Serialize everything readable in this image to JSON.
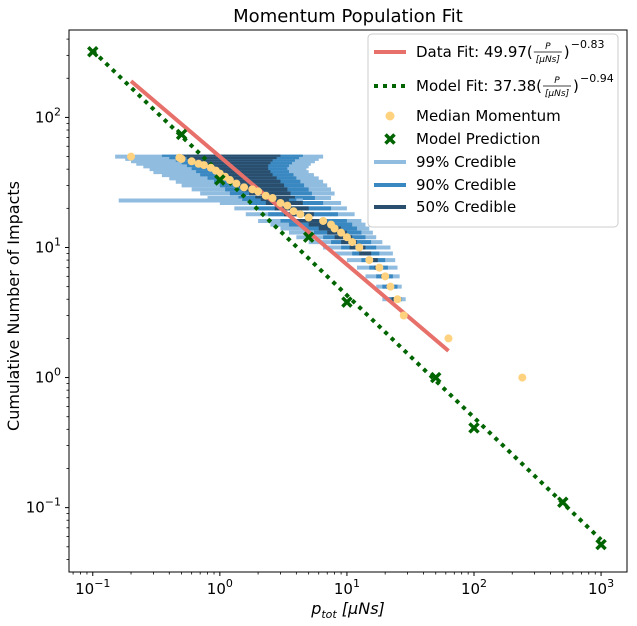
{
  "chart_data": {
    "type": "scatter",
    "title": "Momentum Population Fit",
    "xlabel": "p_tot [μNs]",
    "ylabel": "Cumulative Number of Impacts",
    "xscale": "log",
    "yscale": "log",
    "xlim": [
      0.065,
      1600
    ],
    "ylim": [
      0.032,
      470
    ],
    "x_ticks": [
      {
        "value": 0.1,
        "base": "10",
        "exp": "−1"
      },
      {
        "value": 1,
        "base": "10",
        "exp": "0"
      },
      {
        "value": 10,
        "base": "10",
        "exp": "1"
      },
      {
        "value": 100,
        "base": "10",
        "exp": "2"
      },
      {
        "value": 1000,
        "base": "10",
        "exp": "3"
      }
    ],
    "y_ticks": [
      {
        "value": 0.1,
        "base": "10",
        "exp": "−1"
      },
      {
        "value": 1,
        "base": "10",
        "exp": "0"
      },
      {
        "value": 10,
        "base": "10",
        "exp": "1"
      },
      {
        "value": 100,
        "base": "10",
        "exp": "2"
      }
    ],
    "grid": false,
    "legend_position": "top-right",
    "colors": {
      "data_fit": "#e8706a",
      "model_fit": "#006400",
      "median": "#ffd27f",
      "model_pred": "#006400",
      "ci99": "#90bce0",
      "ci90": "#3a88c2",
      "ci50": "#2a4f6e"
    },
    "data_fit": {
      "coef": 49.97,
      "exponent": -0.83,
      "x_range": [
        0.2,
        63
      ]
    },
    "model_fit": {
      "coef": 37.38,
      "exponent": -0.94,
      "x_range": [
        0.1,
        1000
      ]
    },
    "median_momentum": [
      [
        0.2,
        50
      ],
      [
        0.48,
        49
      ],
      [
        0.5,
        48
      ],
      [
        0.6,
        46
      ],
      [
        0.68,
        44
      ],
      [
        0.75,
        43
      ],
      [
        0.85,
        41
      ],
      [
        0.93,
        39
      ],
      [
        1.0,
        37
      ],
      [
        1.1,
        35
      ],
      [
        1.2,
        33
      ],
      [
        1.35,
        31
      ],
      [
        1.55,
        29
      ],
      [
        1.8,
        28
      ],
      [
        2.0,
        27
      ],
      [
        2.3,
        25
      ],
      [
        2.6,
        24
      ],
      [
        3.0,
        22
      ],
      [
        3.4,
        21
      ],
      [
        3.8,
        19
      ],
      [
        4.3,
        18
      ],
      [
        5.0,
        17
      ],
      [
        6.5,
        16
      ],
      [
        7.5,
        15
      ],
      [
        8.0,
        14
      ],
      [
        9.0,
        13
      ],
      [
        10.0,
        12
      ],
      [
        11.0,
        11
      ],
      [
        12.5,
        10
      ],
      [
        15.0,
        8
      ],
      [
        18.0,
        7
      ],
      [
        20.0,
        6
      ],
      [
        22.0,
        5
      ],
      [
        25.0,
        4
      ],
      [
        28.0,
        3
      ],
      [
        63.0,
        2
      ],
      [
        240.0,
        1
      ]
    ],
    "model_prediction": [
      [
        0.1,
        320
      ],
      [
        0.5,
        74
      ],
      [
        1.0,
        33
      ],
      [
        5.0,
        12
      ],
      [
        10.0,
        3.8
      ],
      [
        50.0,
        1.0
      ],
      [
        100.0,
        0.41
      ],
      [
        500.0,
        0.11
      ],
      [
        1000.0,
        0.052
      ]
    ],
    "credible_intervals": [
      {
        "y": 50,
        "ci99": [
          0.15,
          6.5
        ],
        "ci90": [
          0.35,
          4.5
        ],
        "ci50": [
          0.5,
          3.0
        ]
      },
      {
        "y": 48,
        "ci99": [
          0.18,
          6.0
        ],
        "ci90": [
          0.4,
          4.2
        ],
        "ci50": [
          0.55,
          2.8
        ]
      },
      {
        "y": 46,
        "ci99": [
          0.2,
          5.6
        ],
        "ci90": [
          0.45,
          3.9
        ],
        "ci50": [
          0.6,
          2.6
        ]
      },
      {
        "y": 44,
        "ci99": [
          0.22,
          5.2
        ],
        "ci90": [
          0.5,
          3.7
        ],
        "ci50": [
          0.7,
          2.5
        ]
      },
      {
        "y": 42,
        "ci99": [
          0.25,
          5.0
        ],
        "ci90": [
          0.55,
          3.5
        ],
        "ci50": [
          0.8,
          2.4
        ]
      },
      {
        "y": 40,
        "ci99": [
          0.28,
          4.8
        ],
        "ci90": [
          0.6,
          3.4
        ],
        "ci50": [
          0.85,
          2.4
        ]
      },
      {
        "y": 38,
        "ci99": [
          0.3,
          5.0
        ],
        "ci90": [
          0.65,
          3.5
        ],
        "ci50": [
          0.9,
          2.5
        ]
      },
      {
        "y": 36,
        "ci99": [
          0.35,
          5.5
        ],
        "ci90": [
          0.7,
          3.8
        ],
        "ci50": [
          1.0,
          2.6
        ]
      },
      {
        "y": 34,
        "ci99": [
          0.4,
          6.0
        ],
        "ci90": [
          0.8,
          4.0
        ],
        "ci50": [
          1.1,
          2.8
        ]
      },
      {
        "y": 32,
        "ci99": [
          0.45,
          6.5
        ],
        "ci90": [
          0.9,
          4.3
        ],
        "ci50": [
          1.2,
          3.0
        ]
      },
      {
        "y": 30,
        "ci99": [
          0.5,
          7.0
        ],
        "ci90": [
          1.0,
          4.6
        ],
        "ci50": [
          1.3,
          3.2
        ]
      },
      {
        "y": 28,
        "ci99": [
          0.6,
          7.5
        ],
        "ci90": [
          1.1,
          5.0
        ],
        "ci50": [
          1.5,
          3.4
        ]
      },
      {
        "y": 26,
        "ci99": [
          0.7,
          8.0
        ],
        "ci90": [
          1.2,
          5.3
        ],
        "ci50": [
          1.7,
          3.6
        ]
      },
      {
        "y": 24,
        "ci99": [
          0.8,
          7.5
        ],
        "ci90": [
          1.4,
          5.6
        ],
        "ci50": [
          1.9,
          3.9
        ]
      },
      {
        "y": 23,
        "ci99": [
          0.16,
          4.5
        ],
        "ci90": [
          1.5,
          4.0
        ],
        "ci50": [
          2.1,
          3.5
        ]
      },
      {
        "y": 22,
        "ci99": [
          1.0,
          9.0
        ],
        "ci90": [
          1.7,
          6.5
        ],
        "ci50": [
          2.3,
          4.5
        ]
      },
      {
        "y": 20,
        "ci99": [
          1.3,
          10.0
        ],
        "ci90": [
          2.0,
          7.5
        ],
        "ci50": [
          2.7,
          5.0
        ]
      },
      {
        "y": 18,
        "ci99": [
          1.6,
          11.5
        ],
        "ci90": [
          2.4,
          8.5
        ],
        "ci50": [
          3.2,
          5.5
        ]
      },
      {
        "y": 16,
        "ci99": [
          2.0,
          13.0
        ],
        "ci90": [
          3.0,
          10.0
        ],
        "ci50": [
          4.0,
          7.0
        ]
      },
      {
        "y": 15,
        "ci99": [
          2.5,
          14.0
        ],
        "ci90": [
          3.5,
          11.0
        ],
        "ci50": [
          5.0,
          8.0
        ]
      },
      {
        "y": 14,
        "ci99": [
          3.0,
          15.0
        ],
        "ci90": [
          4.5,
          12.0
        ],
        "ci50": [
          6.0,
          9.0
        ]
      },
      {
        "y": 13,
        "ci99": [
          3.5,
          16.0
        ],
        "ci90": [
          5.5,
          13.0
        ],
        "ci50": [
          7.0,
          10.0
        ]
      },
      {
        "y": 12,
        "ci99": [
          4.0,
          17.0
        ],
        "ci90": [
          6.5,
          14.0
        ],
        "ci50": [
          8.0,
          11.0
        ]
      },
      {
        "y": 11,
        "ci99": [
          5.0,
          19.0
        ],
        "ci90": [
          7.5,
          15.5
        ],
        "ci50": [
          9.0,
          12.0
        ]
      },
      {
        "y": 10,
        "ci99": [
          6.5,
          22.0
        ],
        "ci90": [
          9.0,
          17.0
        ],
        "ci50": [
          10.5,
          14.0
        ]
      },
      {
        "y": 9,
        "ci99": [
          8.0,
          23.0
        ],
        "ci90": [
          11.0,
          18.0
        ],
        "ci50": [
          12.5,
          15.5
        ]
      },
      {
        "y": 8,
        "ci99": [
          10.0,
          24.0
        ],
        "ci90": [
          13.0,
          20.0
        ],
        "ci50": [
          14.5,
          17.5
        ]
      },
      {
        "y": 7,
        "ci99": [
          12.0,
          25.0
        ],
        "ci90": [
          15.0,
          21.0
        ],
        "ci50": [
          16.5,
          19.0
        ]
      },
      {
        "y": 6,
        "ci99": [
          14.0,
          26.0
        ],
        "ci90": [
          17.0,
          23.0
        ],
        "ci50": [
          18.5,
          21.0
        ]
      },
      {
        "y": 5,
        "ci99": [
          17.0,
          27.0
        ],
        "ci90": [
          19.0,
          25.0
        ],
        "ci50": [
          20.5,
          23.0
        ]
      },
      {
        "y": 4,
        "ci99": [
          19.0,
          29.0
        ],
        "ci90": [
          21.0,
          27.0
        ],
        "ci50": [
          22.5,
          25.5
        ]
      }
    ],
    "legend": [
      {
        "key": "data_fit",
        "label": "Data Fit: 49.97(",
        "frac_num": "P",
        "frac_den": "[μNs]",
        "close": ")",
        "exp": "−0.83"
      },
      {
        "key": "model_fit",
        "label": "Model Fit: 37.38(",
        "frac_num": "P",
        "frac_den": "[μNs]",
        "close": ")",
        "exp": "−0.94"
      },
      {
        "key": "median",
        "label": "Median Momentum"
      },
      {
        "key": "model_pred",
        "label": "Model Prediction"
      },
      {
        "key": "ci99",
        "label": "99% Credible"
      },
      {
        "key": "ci90",
        "label": "90% Credible"
      },
      {
        "key": "ci50",
        "label": "50% Credible"
      }
    ]
  }
}
